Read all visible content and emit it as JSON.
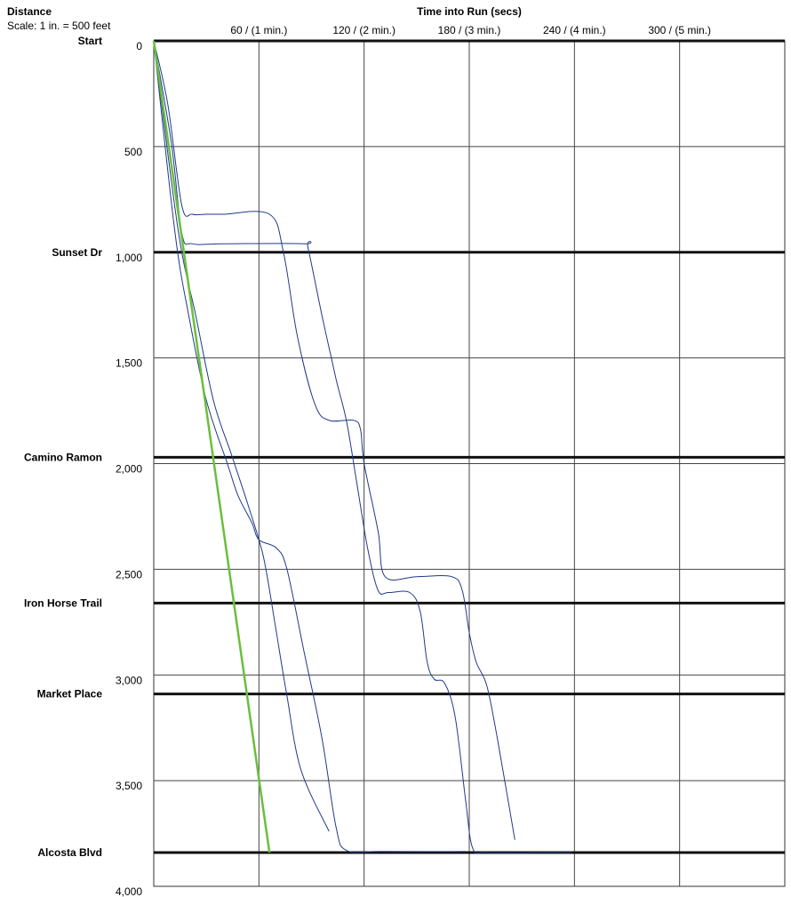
{
  "chart_data": {
    "type": "line",
    "header": {
      "y_title": "Distance",
      "scale": "Scale: 1 in. = 500 feet",
      "x_title": "Time into Run (secs)"
    },
    "x_ticks": [
      {
        "value": 60,
        "label": "60 / (1 min.)"
      },
      {
        "value": 120,
        "label": "120 / (2 min.)"
      },
      {
        "value": 180,
        "label": "180 / (3 min.)"
      },
      {
        "value": 240,
        "label": "240 / (4 min.)"
      },
      {
        "value": 300,
        "label": "300 / (5 min.)"
      }
    ],
    "y_ticks": [
      {
        "value": 0,
        "label": "0"
      },
      {
        "value": 500,
        "label": "500"
      },
      {
        "value": 1000,
        "label": "1,000"
      },
      {
        "value": 1500,
        "label": "1,500"
      },
      {
        "value": 2000,
        "label": "2,000"
      },
      {
        "value": 2500,
        "label": "2,500"
      },
      {
        "value": 3000,
        "label": "3,000"
      },
      {
        "value": 3500,
        "label": "3,500"
      },
      {
        "value": 4000,
        "label": "4,000"
      }
    ],
    "xlim": [
      0,
      360
    ],
    "ylim": [
      0,
      4000
    ],
    "grid": true,
    "streets": [
      {
        "name": "Start",
        "distance": 0
      },
      {
        "name": "Sunset Dr",
        "distance": 1000
      },
      {
        "name": "Camino Ramon",
        "distance": 1970
      },
      {
        "name": "Iron Horse Trail",
        "distance": 2660
      },
      {
        "name": "Market Place",
        "distance": 3090
      },
      {
        "name": "Alcosta Blvd",
        "distance": 3840
      }
    ],
    "reference_line": {
      "color": "#6abf3b",
      "points": [
        [
          0,
          0
        ],
        [
          66,
          3840
        ]
      ]
    },
    "trajectory_color": "#1f3a8a",
    "series": [
      {
        "points": [
          [
            0,
            0
          ],
          [
            8,
            300
          ],
          [
            16,
            780
          ],
          [
            22,
            820
          ],
          [
            30,
            820
          ],
          [
            40,
            820
          ],
          [
            66,
            820
          ],
          [
            74,
            1000
          ],
          [
            82,
            1400
          ],
          [
            92,
            1720
          ],
          [
            100,
            1795
          ],
          [
            114,
            1795
          ],
          [
            118,
            1840
          ],
          [
            120,
            2000
          ],
          [
            128,
            2320
          ],
          [
            132,
            2535
          ],
          [
            150,
            2535
          ],
          [
            170,
            2535
          ],
          [
            176,
            2600
          ],
          [
            180,
            2800
          ],
          [
            184,
            2940
          ],
          [
            190,
            3050
          ],
          [
            196,
            3300
          ],
          [
            206,
            3780
          ]
        ]
      },
      {
        "points": [
          [
            0,
            0
          ],
          [
            10,
            480
          ],
          [
            16,
            910
          ],
          [
            22,
            960
          ],
          [
            40,
            960
          ],
          [
            86,
            960
          ],
          [
            88,
            980
          ],
          [
            96,
            1300
          ],
          [
            104,
            1600
          ],
          [
            110,
            1800
          ],
          [
            116,
            2100
          ],
          [
            122,
            2400
          ],
          [
            128,
            2600
          ],
          [
            134,
            2610
          ],
          [
            146,
            2610
          ],
          [
            152,
            2700
          ],
          [
            156,
            2940
          ],
          [
            160,
            3020
          ],
          [
            166,
            3040
          ],
          [
            172,
            3200
          ],
          [
            178,
            3600
          ],
          [
            182,
            3820
          ],
          [
            190,
            3840
          ],
          [
            224,
            3840
          ],
          [
            238,
            3840
          ]
        ]
      },
      {
        "points": [
          [
            0,
            0
          ],
          [
            12,
            900
          ],
          [
            20,
            1300
          ],
          [
            30,
            1700
          ],
          [
            42,
            2000
          ],
          [
            48,
            2150
          ],
          [
            56,
            2280
          ],
          [
            60,
            2360
          ],
          [
            70,
            2400
          ],
          [
            76,
            2500
          ],
          [
            86,
            2900
          ],
          [
            96,
            3300
          ],
          [
            104,
            3720
          ],
          [
            110,
            3830
          ],
          [
            130,
            3835
          ],
          [
            178,
            3835
          ]
        ]
      },
      {
        "points": [
          [
            0,
            0
          ],
          [
            14,
            900
          ],
          [
            24,
            1300
          ],
          [
            34,
            1700
          ],
          [
            44,
            1950
          ],
          [
            52,
            2150
          ],
          [
            60,
            2360
          ],
          [
            64,
            2500
          ],
          [
            70,
            2800
          ],
          [
            76,
            3100
          ],
          [
            84,
            3450
          ],
          [
            100,
            3740
          ]
        ]
      }
    ]
  }
}
